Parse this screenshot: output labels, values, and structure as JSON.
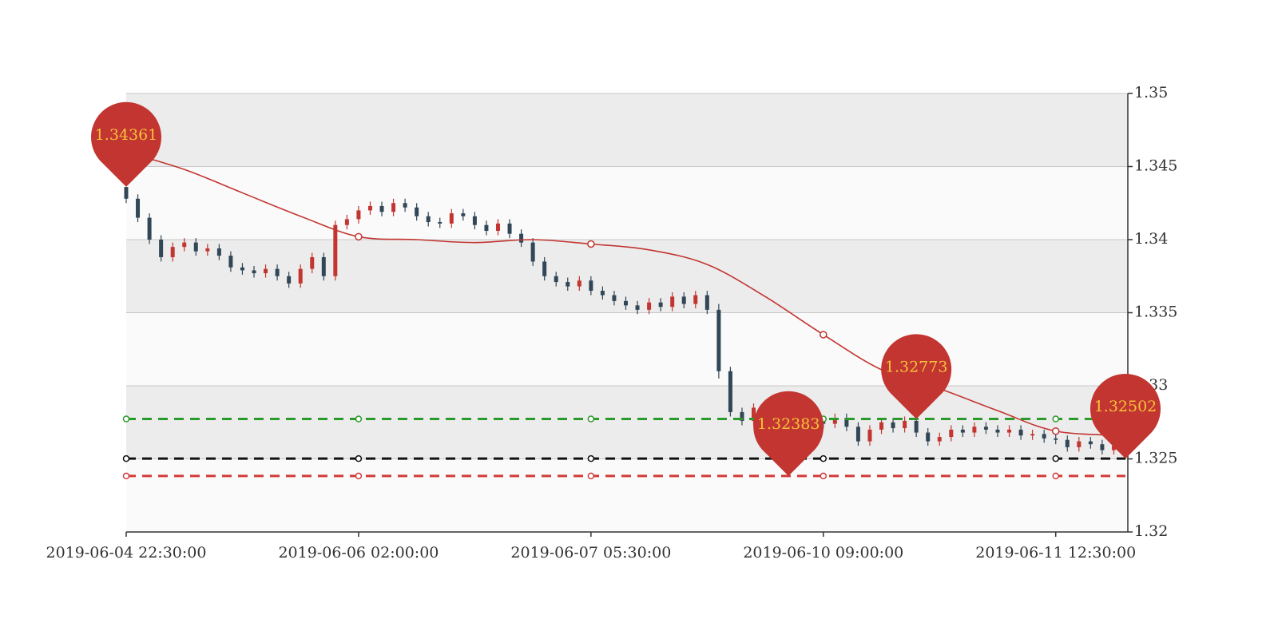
{
  "chart_data": {
    "type": "candlestick",
    "categories": [
      "2019-06-04 22:30:00",
      null,
      null,
      null,
      null,
      null,
      null,
      null,
      null,
      null,
      null,
      null,
      null,
      null,
      null,
      null,
      null,
      null,
      null,
      null,
      "2019-06-06 02:00:00",
      null,
      null,
      null,
      null,
      null,
      null,
      null,
      null,
      null,
      null,
      null,
      null,
      null,
      null,
      null,
      null,
      null,
      null,
      null,
      "2019-06-07 05:30:00",
      null,
      null,
      null,
      null,
      null,
      null,
      null,
      null,
      null,
      null,
      null,
      null,
      null,
      null,
      null,
      null,
      null,
      null,
      null,
      "2019-06-10 09:00:00",
      null,
      null,
      null,
      null,
      null,
      null,
      null,
      null,
      null,
      null,
      null,
      null,
      null,
      null,
      null,
      null,
      null,
      null,
      null,
      "2019-06-11 12:30:00",
      null,
      null,
      null,
      null,
      null,
      null
    ],
    "open": [
      1.3436,
      1.3428,
      1.3415,
      1.34,
      1.3388,
      1.3395,
      1.3398,
      1.3392,
      1.3394,
      1.3389,
      1.3381,
      1.3379,
      1.3377,
      1.338,
      1.3375,
      1.337,
      1.338,
      1.3388,
      1.3375,
      1.341,
      1.3414,
      1.342,
      1.3423,
      1.3419,
      1.3425,
      1.3422,
      1.3416,
      1.3412,
      1.3411,
      1.3418,
      1.3416,
      1.341,
      1.3406,
      1.3411,
      1.3404,
      1.3398,
      1.3385,
      1.3375,
      1.3371,
      1.3368,
      1.3372,
      1.3365,
      1.3362,
      1.3358,
      1.3355,
      1.3352,
      1.3357,
      1.3354,
      1.3361,
      1.3356,
      1.3362,
      1.3352,
      1.331,
      1.3282,
      1.3276,
      1.3285,
      1.3272,
      1.3265,
      1.3268,
      1.327,
      1.3276,
      1.3274,
      1.3278,
      1.3272,
      1.3262,
      1.327,
      1.3275,
      1.3271,
      1.3276,
      1.3268,
      1.3262,
      1.3265,
      1.327,
      1.3268,
      1.3272,
      1.327,
      1.3268,
      1.327,
      1.3266,
      1.3267,
      1.3264,
      1.3263,
      1.3258,
      1.3262,
      1.326,
      1.3256,
      1.3259
    ],
    "close": [
      1.3428,
      1.3415,
      1.34,
      1.3388,
      1.3395,
      1.3398,
      1.3392,
      1.3394,
      1.3389,
      1.3381,
      1.3379,
      1.3377,
      1.338,
      1.3375,
      1.337,
      1.338,
      1.3388,
      1.3375,
      1.341,
      1.3414,
      1.342,
      1.3423,
      1.3419,
      1.3425,
      1.3422,
      1.3416,
      1.3412,
      1.3411,
      1.3418,
      1.3416,
      1.341,
      1.3406,
      1.3411,
      1.3404,
      1.3398,
      1.3385,
      1.3375,
      1.3371,
      1.3368,
      1.3372,
      1.3365,
      1.3362,
      1.3358,
      1.3355,
      1.3352,
      1.3357,
      1.3354,
      1.3361,
      1.3356,
      1.3362,
      1.3352,
      1.331,
      1.3282,
      1.3276,
      1.3285,
      1.3272,
      1.3265,
      1.3268,
      1.327,
      1.3276,
      1.3274,
      1.3278,
      1.3272,
      1.3262,
      1.327,
      1.3275,
      1.3271,
      1.3276,
      1.3268,
      1.3262,
      1.3265,
      1.327,
      1.3268,
      1.3272,
      1.327,
      1.3268,
      1.327,
      1.3266,
      1.3267,
      1.3264,
      1.3263,
      1.3258,
      1.3262,
      1.326,
      1.3256,
      1.3259,
      1.3254
    ],
    "low": [
      1.3425,
      1.3412,
      1.3397,
      1.3385,
      1.3385,
      1.3392,
      1.3389,
      1.3389,
      1.3386,
      1.3378,
      1.3376,
      1.3374,
      1.3374,
      1.3372,
      1.3367,
      1.3367,
      1.3377,
      1.3372,
      1.3372,
      1.3407,
      1.3411,
      1.3417,
      1.3416,
      1.3416,
      1.3419,
      1.3413,
      1.3409,
      1.3408,
      1.3408,
      1.3413,
      1.3407,
      1.3403,
      1.3403,
      1.3401,
      1.3395,
      1.3382,
      1.3372,
      1.3368,
      1.3365,
      1.3365,
      1.3362,
      1.3359,
      1.3355,
      1.3352,
      1.3349,
      1.3349,
      1.3351,
      1.3351,
      1.3353,
      1.3353,
      1.3349,
      1.3305,
      1.3279,
      1.3273,
      1.3273,
      1.3269,
      1.3262,
      1.32383,
      1.3265,
      1.3267,
      1.3271,
      1.3271,
      1.3269,
      1.3259,
      1.3259,
      1.3267,
      1.3268,
      1.3268,
      1.3265,
      1.3259,
      1.3259,
      1.3262,
      1.3265,
      1.3265,
      1.3267,
      1.3265,
      1.3265,
      1.3263,
      1.3263,
      1.3261,
      1.326,
      1.3255,
      1.3255,
      1.3257,
      1.3253,
      1.3253,
      1.32502
    ],
    "high": [
      1.34361,
      1.3431,
      1.3418,
      1.3403,
      1.3398,
      1.3401,
      1.3401,
      1.3397,
      1.3397,
      1.3392,
      1.3384,
      1.3382,
      1.3383,
      1.3383,
      1.3378,
      1.3383,
      1.3391,
      1.3391,
      1.3413,
      1.3417,
      1.3423,
      1.3426,
      1.3426,
      1.3428,
      1.3428,
      1.3425,
      1.3419,
      1.3415,
      1.3421,
      1.3421,
      1.3419,
      1.3413,
      1.3414,
      1.3414,
      1.3407,
      1.3401,
      1.3388,
      1.3378,
      1.3374,
      1.3375,
      1.3375,
      1.3368,
      1.3365,
      1.3361,
      1.3358,
      1.336,
      1.336,
      1.3364,
      1.3364,
      1.3365,
      1.3365,
      1.3356,
      1.3313,
      1.3285,
      1.3288,
      1.3288,
      1.3275,
      1.3271,
      1.3273,
      1.3279,
      1.3279,
      1.3281,
      1.3281,
      1.3275,
      1.3273,
      1.3278,
      1.3278,
      1.3279,
      1.32773,
      1.3271,
      1.3268,
      1.3273,
      1.3273,
      1.3275,
      1.3275,
      1.3273,
      1.3273,
      1.3273,
      1.327,
      1.327,
      1.3267,
      1.3266,
      1.3265,
      1.3265,
      1.3263,
      1.3262,
      1.3262
    ],
    "up_color": "#c23531",
    "down_color": "#314656",
    "ma": {
      "color": "#c23531",
      "x": [
        0,
        5,
        10,
        15,
        20,
        25,
        30,
        35,
        40,
        45,
        50,
        55,
        60,
        65,
        70,
        75,
        80,
        86
      ],
      "values": [
        1.346,
        1.3448,
        1.3432,
        1.3416,
        1.3402,
        1.34,
        1.3398,
        1.34,
        1.3397,
        1.3393,
        1.3383,
        1.3361,
        1.3335,
        1.3311,
        1.3298,
        1.3283,
        1.3269,
        1.3266
      ]
    },
    "mark_lines": [
      {
        "value": 1.32773,
        "color": "#2a9a2a"
      },
      {
        "value": 1.32502,
        "color": "#111111"
      },
      {
        "value": 1.32383,
        "color": "#d33a3a"
      }
    ],
    "mark_points": [
      {
        "index": 0,
        "value": 1.34361
      },
      {
        "index": 57,
        "value": 1.32383
      },
      {
        "index": 68,
        "value": 1.32773
      },
      {
        "index": 86,
        "value": 1.32502
      }
    ],
    "mark_point_color": "#c23531",
    "ylim": [
      1.32,
      1.35
    ],
    "yticks": [
      1.32,
      1.325,
      1.33,
      1.335,
      1.34,
      1.345,
      1.35
    ],
    "grid": true
  }
}
